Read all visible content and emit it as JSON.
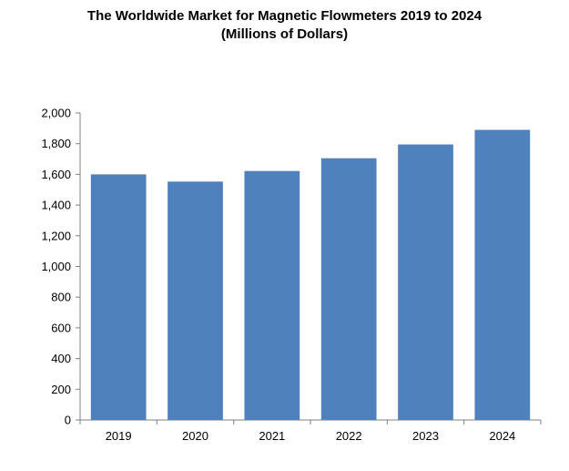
{
  "chart_data": {
    "type": "bar",
    "title": "The Worldwide Market for Magnetic Flowmeters 2019 to 2024",
    "subtitle": "(Millions of Dollars)",
    "categories": [
      "2019",
      "2020",
      "2021",
      "2022",
      "2023",
      "2024"
    ],
    "values": [
      1600,
      1553,
      1622,
      1705,
      1795,
      1890
    ],
    "ylim": [
      0,
      2000
    ],
    "yticks": [
      "0",
      "200",
      "400",
      "600",
      "800",
      "1,000",
      "1,200",
      "1,400",
      "1,600",
      "1,800",
      "2,000"
    ],
    "bar_color": "#4f81bd",
    "grid": false,
    "legend": "none",
    "xlabel": "",
    "ylabel": ""
  }
}
